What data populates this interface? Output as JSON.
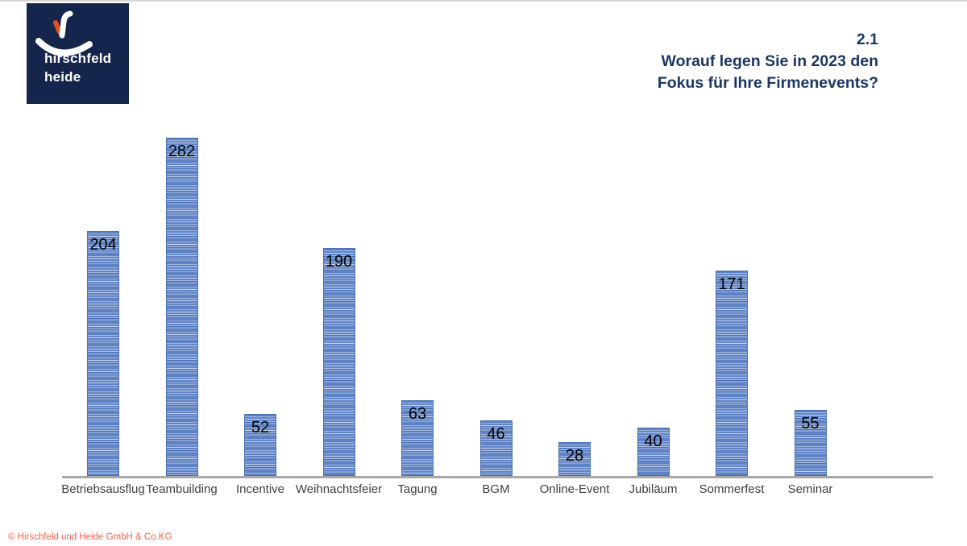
{
  "logo": {
    "line1": "hirschfeld",
    "line2": "heide",
    "bg_color": "#15254C",
    "accent_color": "#E8501E"
  },
  "header": {
    "number": "2.1",
    "title_line1": "Worauf legen Sie in 2023 den",
    "title_line2": "Fokus für Ihre Firmenevents?",
    "color": "#1B3764"
  },
  "chart_data": {
    "type": "bar",
    "title": "2.1 Worauf legen Sie in 2023 den Fokus für Ihre Firmenevents?",
    "categories": [
      "Betriebsausflug",
      "Teambuilding",
      "Incentive",
      "Weihnachtsfeier",
      "Tagung",
      "BGM",
      "Online-Event",
      "Jubiläum",
      "Sommerfest",
      "Seminar"
    ],
    "values": [
      204,
      282,
      52,
      190,
      63,
      46,
      28,
      40,
      171,
      55
    ],
    "xlabel": "",
    "ylabel": "",
    "ylim": [
      0,
      282
    ],
    "grid": false,
    "legend": false,
    "data_labels": "inside-end",
    "bar_color": "#5E82C4",
    "bar_stripe_color": "#A9BEE4",
    "bar_border_color": "#4A70B0",
    "axis_color": "#A8A8A8",
    "value_label_color": "#000000",
    "category_label_color": "#3F3F3F"
  },
  "footer": {
    "copyright": "© Hirschfeld und Heide GmbH & Co.KG",
    "color": "#F2604A"
  }
}
